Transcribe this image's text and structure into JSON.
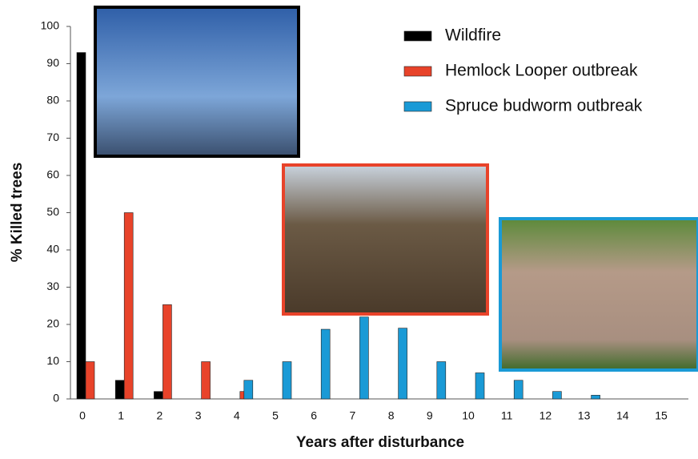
{
  "chart_data": {
    "type": "bar",
    "x_label": "Years after disturbance",
    "y_label": "% Killed trees",
    "categories": [
      "0",
      "1",
      "2",
      "3",
      "4",
      "5",
      "6",
      "7",
      "8",
      "9",
      "10",
      "11",
      "12",
      "13",
      "14",
      "15"
    ],
    "series": [
      {
        "name": "Wildfire",
        "color": "#000000",
        "values": [
          93,
          5,
          2,
          null,
          null,
          null,
          null,
          null,
          null,
          null,
          null,
          null,
          null,
          null,
          null,
          null
        ]
      },
      {
        "name": "Hemlock Looper outbreak",
        "color": "#e8432a",
        "values": [
          10,
          50,
          25.3,
          10,
          2,
          null,
          null,
          null,
          null,
          null,
          null,
          null,
          null,
          null,
          null,
          null
        ]
      },
      {
        "name": "Spruce budworm outbreak",
        "color": "#1a9ad6",
        "values": [
          null,
          null,
          null,
          null,
          5,
          10,
          18.7,
          22,
          19,
          10,
          7,
          5,
          2,
          1,
          0,
          0
        ]
      }
    ],
    "ylim": [
      0,
      100
    ],
    "yticks": [
      0,
      10,
      20,
      30,
      40,
      50,
      60,
      70,
      80,
      90,
      100
    ],
    "grid": false,
    "legend": "top-right"
  }
}
